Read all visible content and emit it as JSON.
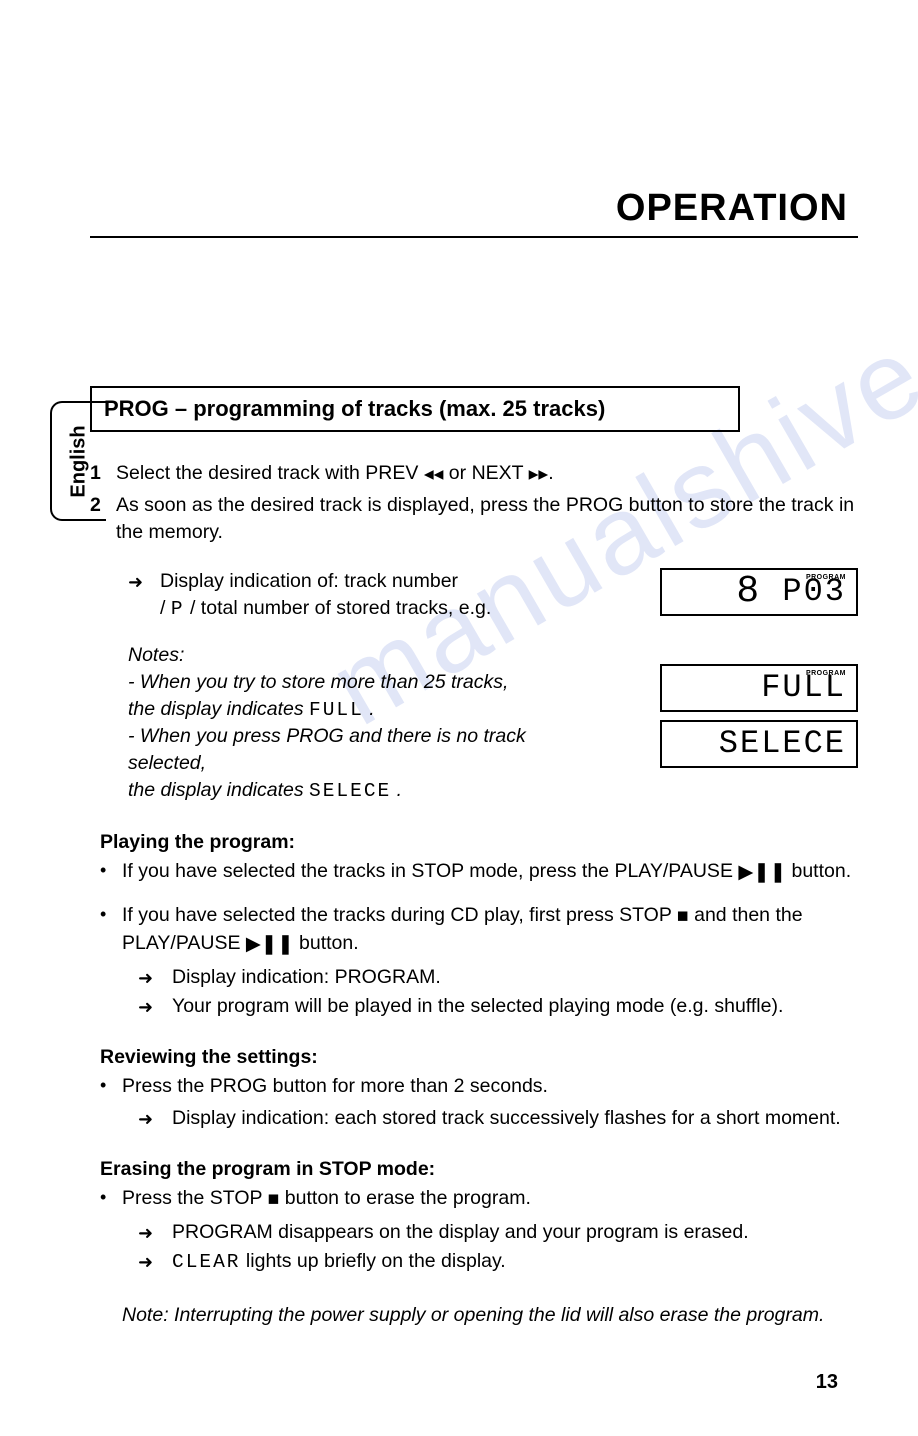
{
  "header": {
    "title": "OPERATION"
  },
  "langTab": {
    "label": "English"
  },
  "sectionTitle": "PROG – programming of tracks (max. 25 tracks)",
  "steps": {
    "s1": {
      "num": "1",
      "text_a": "Select the desired track with PREV ",
      "text_b": " or NEXT ",
      "text_c": "."
    },
    "s2": {
      "num": "2",
      "text": "As soon as the desired track is displayed, press the PROG button to store the track in the memory."
    }
  },
  "displayIndication": {
    "line1": "Display indication of: track number",
    "line2_a": "/ ",
    "line2_seg": "P",
    "line2_b": " / total number of stored tracks, e.g."
  },
  "lcd1": {
    "big": "8",
    "rest": "P03",
    "label": "PROGRAM"
  },
  "notes": {
    "title": "Notes:",
    "n1_a": "- When you try to store more than 25 tracks,",
    "n1_b": "  the display indicates ",
    "n1_seg": "FULL",
    "n1_c": " .",
    "n2_a": "- When you press PROG and there is no track selected,",
    "n2_b": "  the display indicates ",
    "n2_seg": "SELECE",
    "n2_c": " ."
  },
  "lcd2": {
    "text": "FULL",
    "label": "PROGRAM"
  },
  "lcd3": {
    "text": "SELECE"
  },
  "playing": {
    "head": "Playing the program:",
    "b1_a": "If you have selected the tracks in STOP mode, press the PLAY/PAUSE ",
    "b1_b": " button.",
    "b2_a": "If you have selected the tracks during CD play, first press STOP ",
    "b2_b": " and then the PLAY/PAUSE ",
    "b2_c": " button.",
    "a1": "Display indication: PROGRAM.",
    "a2": "Your program will be played in the selected playing mode (e.g. shuffle)."
  },
  "reviewing": {
    "head": "Reviewing the settings:",
    "b1": "Press the PROG button for more than 2 seconds.",
    "a1": "Display indication: each stored track successively flashes for a short moment."
  },
  "erasing": {
    "head": "Erasing the program in STOP mode:",
    "b1_a": "Press the STOP ",
    "b1_b": " button to erase the program.",
    "a1": "PROGRAM disappears on the display and your program is erased.",
    "a2_seg": "CLEAR",
    "a2_b": " lights up briefly on the display."
  },
  "finalNote": "Note: Interrupting the power supply or opening the lid will also erase the program.",
  "pageNum": "13",
  "icons": {
    "prev": "⏮",
    "next": "⏭",
    "playPause": "▶❚❚",
    "stop": "■",
    "arrow": "➜"
  }
}
